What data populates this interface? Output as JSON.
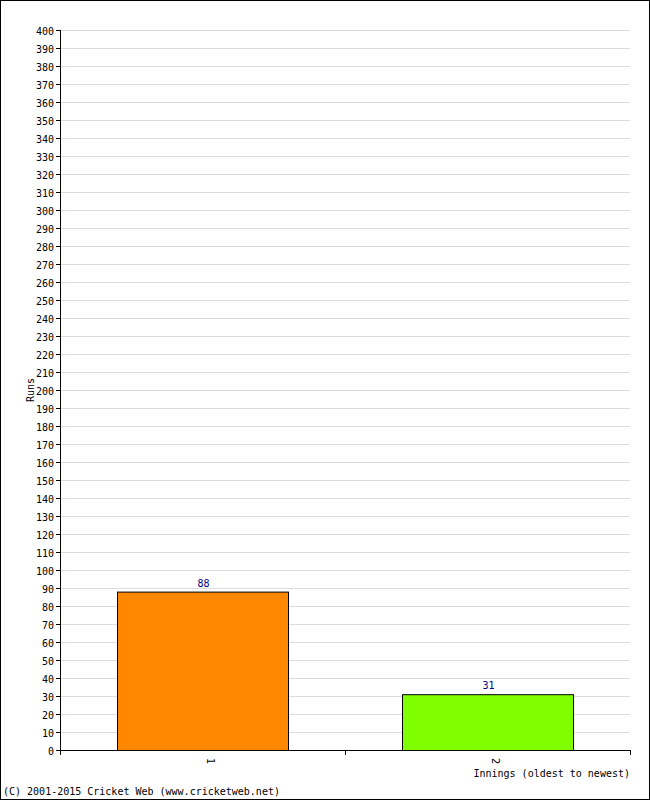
{
  "chart_data": {
    "type": "bar",
    "categories": [
      "1",
      "2"
    ],
    "values": [
      88,
      31
    ],
    "colors": [
      "#ff8800",
      "#80ff00"
    ],
    "x_label": "Innings (oldest to newest)",
    "y_label": "Runs",
    "annotations": [
      "(C) 2001-2015 Cricket Web (www.cricketweb.net)"
    ],
    "ylim": [
      0,
      400
    ],
    "yticks": [
      0,
      10,
      20,
      30,
      40,
      50,
      60,
      70,
      80,
      90,
      100,
      110,
      120,
      130,
      140,
      150,
      160,
      170,
      180,
      190,
      200,
      210,
      220,
      230,
      240,
      250,
      260,
      270,
      280,
      290,
      300,
      310,
      320,
      330,
      340,
      350,
      360,
      370,
      380,
      390,
      400
    ],
    "grid": true,
    "data_labels": true
  }
}
